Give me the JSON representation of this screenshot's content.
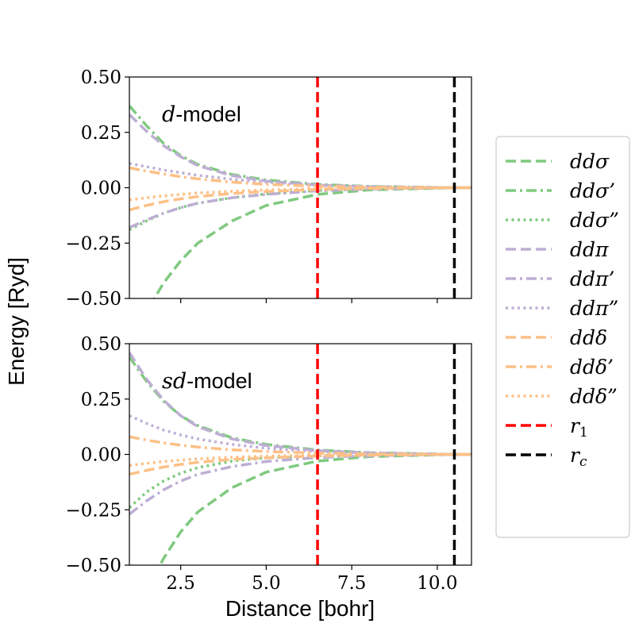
{
  "chart_data": {
    "type": "line",
    "xlabel": "Distance [bohr]",
    "ylabel": "Energy [Ryd]",
    "xlim": [
      1.0,
      11.0
    ],
    "ylim": [
      -0.5,
      0.5
    ],
    "x_ticks": [
      "2.5",
      "5.0",
      "7.5",
      "10.0"
    ],
    "x_tick_values": [
      2.5,
      5.0,
      7.5,
      10.0
    ],
    "y_ticks": [
      "0.50",
      "0.25",
      "0.00",
      "−0.25",
      "−0.50"
    ],
    "y_tick_values": [
      0.5,
      0.25,
      0.0,
      -0.25,
      -0.5
    ],
    "grid": false,
    "legend_position": "right",
    "colors": {
      "sigma": "#7fc97f",
      "pi": "#beaed4",
      "delta": "#fdc086",
      "r1": "#ff0000",
      "rc": "#000000"
    },
    "legend": [
      {
        "name": "ddσ",
        "color": "#7fc97f",
        "dash": "dashed"
      },
      {
        "name": "ddσ’",
        "color": "#7fc97f",
        "dash": "dashdot"
      },
      {
        "name": "ddσ”",
        "color": "#7fc97f",
        "dash": "dotted"
      },
      {
        "name": "ddπ",
        "color": "#beaed4",
        "dash": "dashed"
      },
      {
        "name": "ddπ’",
        "color": "#beaed4",
        "dash": "dashdot"
      },
      {
        "name": "ddπ”",
        "color": "#beaed4",
        "dash": "dotted"
      },
      {
        "name": "ddδ",
        "color": "#fdc086",
        "dash": "dashed"
      },
      {
        "name": "ddδ’",
        "color": "#fdc086",
        "dash": "dashdot"
      },
      {
        "name": "ddδ”",
        "color": "#fdc086",
        "dash": "dotted"
      },
      {
        "name": "r1",
        "color": "#ff0000",
        "dash": "dashed"
      },
      {
        "name": "rc",
        "color": "#000000",
        "dash": "dashed"
      }
    ],
    "vlines": [
      {
        "name": "r1",
        "x": 6.5,
        "color": "#ff0000"
      },
      {
        "name": "rc",
        "x": 10.5,
        "color": "#000000"
      }
    ],
    "panels": [
      {
        "label_italic": "d",
        "label_text": "-model",
        "series": [
          {
            "name": "ddσ",
            "x": [
              1.0,
              1.5,
              2.0,
              2.5,
              3.0,
              4.0,
              5.0,
              6.5,
              8.0,
              10.5,
              11.0
            ],
            "y": [
              -0.72,
              -0.56,
              -0.43,
              -0.33,
              -0.25,
              -0.15,
              -0.08,
              -0.03,
              -0.01,
              0.0,
              0.0
            ]
          },
          {
            "name": "ddσ’",
            "x": [
              1.0,
              1.5,
              2.0,
              2.5,
              3.0,
              4.0,
              5.0,
              6.5,
              8.0,
              10.5,
              11.0
            ],
            "y": [
              0.37,
              0.28,
              0.2,
              0.145,
              0.105,
              0.06,
              0.035,
              0.015,
              0.006,
              0.0,
              0.0
            ]
          },
          {
            "name": "ddσ”",
            "x": [
              1.0,
              1.5,
              2.0,
              2.5,
              3.0,
              4.0,
              5.0,
              6.5,
              8.0,
              10.5,
              11.0
            ],
            "y": [
              -0.19,
              -0.15,
              -0.115,
              -0.09,
              -0.07,
              -0.045,
              -0.028,
              -0.012,
              -0.005,
              0.0,
              0.0
            ]
          },
          {
            "name": "ddπ",
            "x": [
              1.0,
              1.5,
              2.0,
              2.5,
              3.0,
              4.0,
              5.0,
              6.5,
              8.0,
              10.5,
              11.0
            ],
            "y": [
              0.33,
              0.255,
              0.19,
              0.14,
              0.1,
              0.055,
              0.03,
              0.012,
              0.005,
              0.0,
              0.0
            ]
          },
          {
            "name": "ddπ’",
            "x": [
              1.0,
              1.5,
              2.0,
              2.5,
              3.0,
              4.0,
              5.0,
              6.5,
              8.0,
              10.5,
              11.0
            ],
            "y": [
              -0.18,
              -0.145,
              -0.115,
              -0.09,
              -0.07,
              -0.045,
              -0.03,
              -0.014,
              -0.006,
              0.0,
              0.0
            ]
          },
          {
            "name": "ddπ”",
            "x": [
              1.0,
              1.5,
              2.0,
              2.5,
              3.0,
              4.0,
              5.0,
              6.5,
              8.0,
              10.5,
              11.0
            ],
            "y": [
              0.11,
              0.095,
              0.08,
              0.068,
              0.056,
              0.038,
              0.025,
              0.012,
              0.005,
              0.0,
              0.0
            ]
          },
          {
            "name": "ddδ",
            "x": [
              1.0,
              1.5,
              2.0,
              2.5,
              3.0,
              4.0,
              5.0,
              6.5,
              8.0,
              10.5,
              11.0
            ],
            "y": [
              -0.1,
              -0.08,
              -0.063,
              -0.05,
              -0.04,
              -0.026,
              -0.017,
              -0.008,
              -0.003,
              0.0,
              0.0
            ]
          },
          {
            "name": "ddδ’",
            "x": [
              1.0,
              1.5,
              2.0,
              2.5,
              3.0,
              4.0,
              5.0,
              6.5,
              8.0,
              10.5,
              11.0
            ],
            "y": [
              0.09,
              0.075,
              0.062,
              0.05,
              0.04,
              0.025,
              0.015,
              0.007,
              0.003,
              0.0,
              0.0
            ]
          },
          {
            "name": "ddδ”",
            "x": [
              1.0,
              1.5,
              2.0,
              2.5,
              3.0,
              4.0,
              5.0,
              6.5,
              8.0,
              10.5,
              11.0
            ],
            "y": [
              -0.055,
              -0.045,
              -0.037,
              -0.03,
              -0.024,
              -0.016,
              -0.01,
              -0.005,
              -0.002,
              0.0,
              0.0
            ]
          }
        ]
      },
      {
        "label_italic": "sd",
        "label_text": "-model",
        "series": [
          {
            "name": "ddσ",
            "x": [
              1.0,
              1.5,
              2.0,
              2.5,
              3.0,
              4.0,
              5.0,
              6.5,
              8.0,
              10.5,
              11.0
            ],
            "y": [
              -0.8,
              -0.62,
              -0.47,
              -0.35,
              -0.26,
              -0.15,
              -0.08,
              -0.03,
              -0.01,
              0.0,
              0.0
            ]
          },
          {
            "name": "ddσ’",
            "x": [
              1.0,
              1.5,
              2.0,
              2.5,
              3.0,
              4.0,
              5.0,
              6.5,
              8.0,
              10.5,
              11.0
            ],
            "y": [
              0.44,
              0.33,
              0.24,
              0.175,
              0.13,
              0.075,
              0.045,
              0.02,
              0.008,
              0.0,
              0.0
            ]
          },
          {
            "name": "ddσ”",
            "x": [
              1.0,
              1.5,
              2.0,
              2.5,
              3.0,
              4.0,
              5.0,
              6.5,
              8.0,
              10.5,
              11.0
            ],
            "y": [
              -0.24,
              -0.17,
              -0.12,
              -0.085,
              -0.06,
              -0.03,
              -0.015,
              -0.006,
              -0.002,
              0.0,
              0.0
            ]
          },
          {
            "name": "ddπ",
            "x": [
              1.0,
              1.5,
              2.0,
              2.5,
              3.0,
              4.0,
              5.0,
              6.5,
              8.0,
              10.5,
              11.0
            ],
            "y": [
              0.46,
              0.34,
              0.245,
              0.175,
              0.125,
              0.07,
              0.04,
              0.017,
              0.007,
              0.0,
              0.0
            ]
          },
          {
            "name": "ddπ’",
            "x": [
              1.0,
              1.5,
              2.0,
              2.5,
              3.0,
              4.0,
              5.0,
              6.5,
              8.0,
              10.5,
              11.0
            ],
            "y": [
              -0.27,
              -0.21,
              -0.16,
              -0.12,
              -0.09,
              -0.055,
              -0.032,
              -0.014,
              -0.006,
              0.0,
              0.0
            ]
          },
          {
            "name": "ddπ”",
            "x": [
              1.0,
              1.5,
              2.0,
              2.5,
              3.0,
              4.0,
              5.0,
              6.5,
              8.0,
              10.5,
              11.0
            ],
            "y": [
              0.175,
              0.14,
              0.11,
              0.088,
              0.07,
              0.045,
              0.028,
              0.012,
              0.005,
              0.0,
              0.0
            ]
          },
          {
            "name": "ddδ",
            "x": [
              1.0,
              1.5,
              2.0,
              2.5,
              3.0,
              4.0,
              5.0,
              6.5,
              8.0,
              10.5,
              11.0
            ],
            "y": [
              -0.09,
              -0.072,
              -0.057,
              -0.045,
              -0.036,
              -0.023,
              -0.015,
              -0.007,
              -0.003,
              0.0,
              0.0
            ]
          },
          {
            "name": "ddδ’",
            "x": [
              1.0,
              1.5,
              2.0,
              2.5,
              3.0,
              4.0,
              5.0,
              6.5,
              8.0,
              10.5,
              11.0
            ],
            "y": [
              0.08,
              0.065,
              0.052,
              0.042,
              0.033,
              0.021,
              0.013,
              0.006,
              0.002,
              0.0,
              0.0
            ]
          },
          {
            "name": "ddδ”",
            "x": [
              1.0,
              1.5,
              2.0,
              2.5,
              3.0,
              4.0,
              5.0,
              6.5,
              8.0,
              10.5,
              11.0
            ],
            "y": [
              -0.05,
              -0.04,
              -0.032,
              -0.026,
              -0.02,
              -0.013,
              -0.008,
              -0.004,
              -0.002,
              0.0,
              0.0
            ]
          }
        ]
      }
    ]
  }
}
